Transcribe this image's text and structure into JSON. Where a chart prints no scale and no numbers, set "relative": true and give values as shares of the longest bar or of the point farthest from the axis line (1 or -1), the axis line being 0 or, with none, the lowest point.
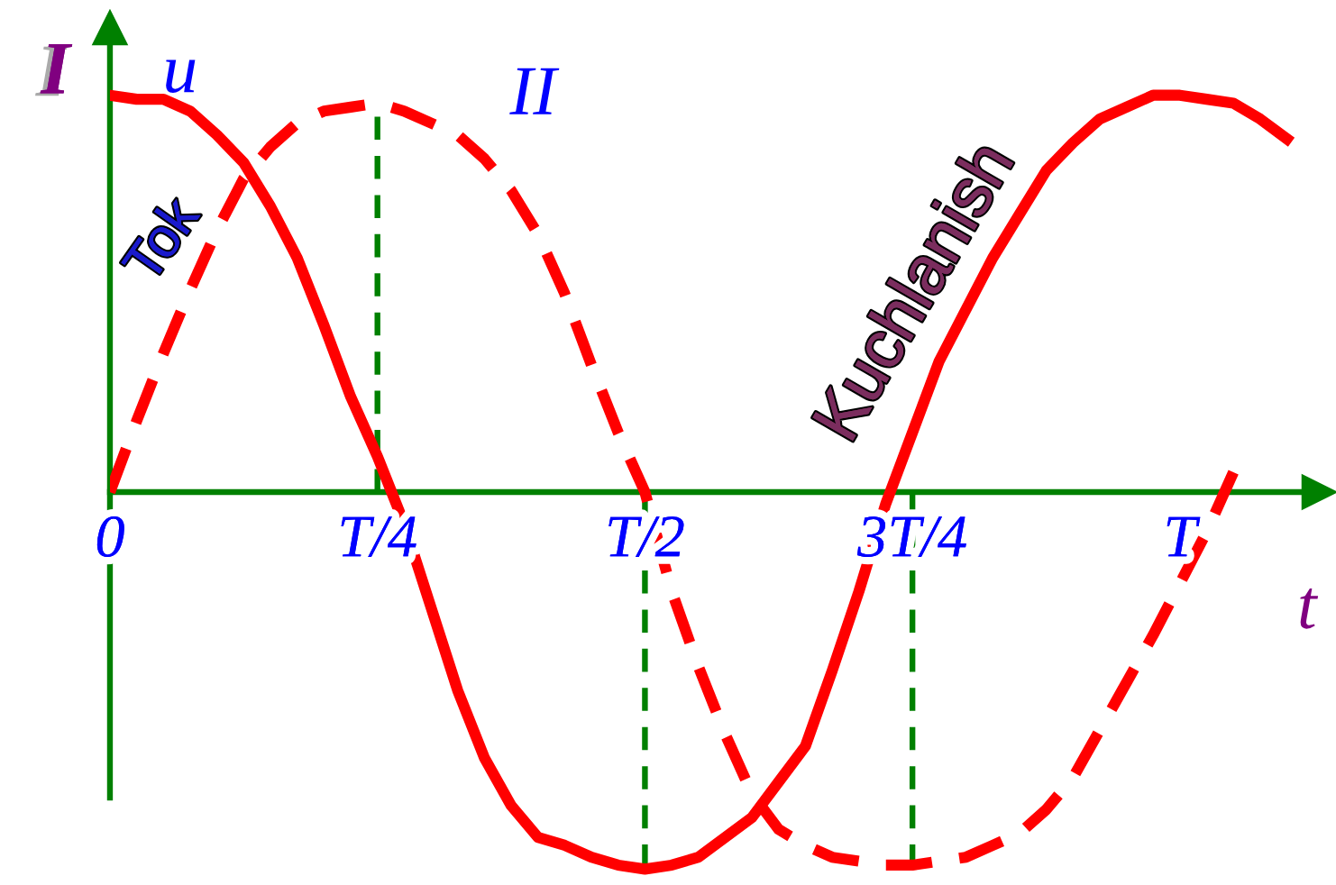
{
  "chart_data": {
    "type": "line",
    "relative": true,
    "xlabel": "t",
    "ylabel": "u",
    "categories": [
      "0",
      null,
      null,
      null,
      null,
      null,
      null,
      null,
      null,
      null,
      "T/4",
      null,
      null,
      null,
      null,
      null,
      null,
      null,
      null,
      null,
      "T/2",
      null,
      null,
      null,
      null,
      null,
      null,
      null,
      null,
      null,
      "3T/4",
      null,
      null,
      null,
      null,
      null,
      null,
      null,
      null,
      null,
      "T",
      null,
      null,
      null,
      null
    ],
    "series": [
      {
        "name": "Kuchlanish",
        "color": "#ff0000",
        "line_style": "solid",
        "values": [
          1.0,
          0.99,
          0.99,
          0.96,
          0.9,
          0.83,
          0.72,
          0.59,
          0.42,
          0.24,
          0.09,
          -0.08,
          -0.29,
          -0.5,
          -0.67,
          -0.79,
          -0.87,
          -0.89,
          -0.92,
          -0.94,
          -0.95,
          -0.94,
          -0.92,
          -0.87,
          -0.82,
          -0.73,
          -0.64,
          -0.45,
          -0.25,
          -0.03,
          0.15,
          0.33,
          0.46,
          0.59,
          0.7,
          0.81,
          0.88,
          0.94,
          0.97,
          1.0,
          1.0,
          0.99,
          0.98,
          0.94,
          0.89
        ]
      },
      {
        "name": "Tok",
        "color": "#ff0000",
        "line_style": "dashed",
        "values": [
          0,
          0.18,
          0.35,
          0.51,
          0.66,
          0.79,
          0.87,
          0.93,
          0.96,
          0.97,
          0.98,
          0.96,
          0.93,
          0.9,
          0.84,
          0.76,
          0.65,
          0.5,
          0.32,
          0.15,
          0,
          -0.25,
          -0.44,
          -0.61,
          -0.76,
          -0.85,
          -0.89,
          -0.92,
          -0.93,
          -0.94,
          -0.94,
          -0.93,
          -0.92,
          -0.89,
          -0.86,
          -0.8,
          -0.72,
          -0.6,
          -0.48,
          -0.36,
          -0.23,
          -0.1,
          0.05,
          null,
          null
        ]
      }
    ],
    "ref_lines": [
      {
        "axis": "x",
        "value": "T/4",
        "color": "#008000",
        "line_style": "dashed"
      },
      {
        "axis": "x",
        "value": "T/2",
        "color": "#008000",
        "line_style": "dashed"
      },
      {
        "axis": "x",
        "value": "3T/4",
        "color": "#008000",
        "line_style": "dashed"
      }
    ],
    "annotations": [
      "I",
      "II"
    ]
  }
}
